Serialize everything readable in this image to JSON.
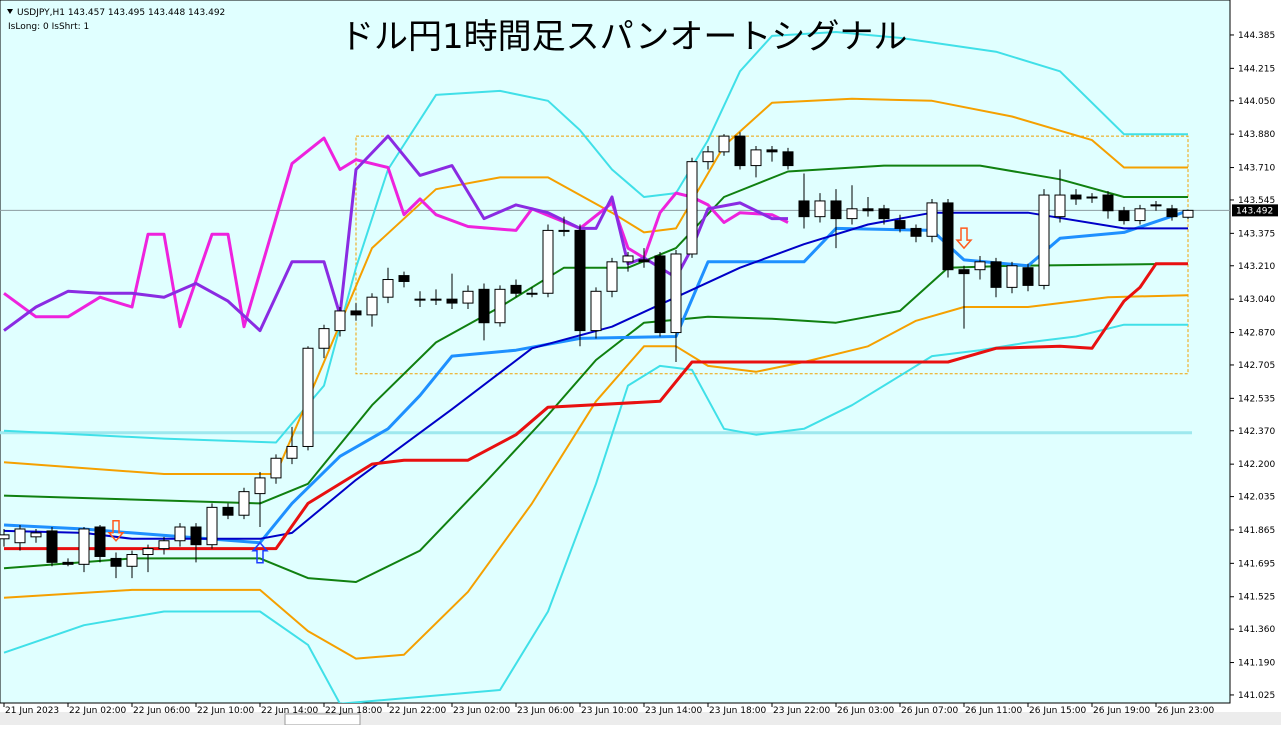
{
  "chart_data": {
    "type": "candlestick",
    "title": "ドル円1時間足スパンオートシグナル",
    "header": "USDJPY,H1  143.457 143.495 143.448 143.492",
    "status": "IsLong: 0 IsShrt: 1",
    "last_price": 143.492,
    "ylim": [
      140.984,
      144.563
    ],
    "xlim": [
      -0.25,
      76.625
    ],
    "yticks": [
      144.385,
      {
        "value": 144.215,
        "label": "144.215"
      },
      {
        "value": 144.05,
        "label": "144.050"
      },
      {
        "value": 143.88,
        "label": "143.880"
      },
      {
        "value": 143.71,
        "label": "143.710"
      },
      143.545,
      143.375,
      {
        "value": 143.21,
        "label": "143.210"
      },
      {
        "value": 143.04,
        "label": "143.040"
      },
      {
        "value": 142.87,
        "label": "142.870"
      },
      142.705,
      142.535,
      {
        "value": 142.37,
        "label": "142.370"
      },
      {
        "value": 142.2,
        "label": "142.200"
      },
      142.035,
      141.865,
      141.695,
      141.525,
      {
        "value": 141.36,
        "label": "141.360"
      },
      {
        "value": 141.19,
        "label": "141.190"
      },
      141.025
    ],
    "xticks": [
      {
        "value": 0,
        "label": "21 Jun 2023"
      },
      {
        "value": 4,
        "label": "22 Jun 02:00"
      },
      {
        "value": 8,
        "label": "22 Jun 06:00"
      },
      {
        "value": 12,
        "label": "22 Jun 10:00"
      },
      {
        "value": 16,
        "label": "22 Jun 14:00"
      },
      {
        "value": 20,
        "label": "22 Jun 18:00"
      },
      {
        "value": 24,
        "label": "22 Jun 22:00"
      },
      {
        "value": 28,
        "label": "23 Jun 02:00"
      },
      {
        "value": 32,
        "label": "23 Jun 06:00"
      },
      {
        "value": 36,
        "label": "23 Jun 10:00"
      },
      {
        "value": 40,
        "label": "23 Jun 14:00"
      },
      {
        "value": 44,
        "label": "23 Jun 18:00"
      },
      {
        "value": 48,
        "label": "23 Jun 22:00"
      },
      {
        "value": 52,
        "label": "26 Jun 03:00"
      },
      {
        "value": 56,
        "label": "26 Jun 07:00"
      },
      {
        "value": 60,
        "label": "26 Jun 11:00"
      },
      {
        "value": 64,
        "label": "26 Jun 15:00"
      },
      {
        "value": 68,
        "label": "26 Jun 19:00"
      },
      {
        "value": 72,
        "label": "26 Jun 23:00"
      }
    ],
    "candles": {
      "open": [
        141.82,
        141.8,
        141.83,
        141.86,
        141.7,
        141.69,
        141.88,
        141.72,
        141.68,
        141.74,
        141.77,
        141.81,
        141.88,
        141.79,
        141.98,
        141.94,
        142.05,
        142.13,
        142.23,
        142.29,
        142.79,
        142.88,
        142.98,
        142.96,
        143.05,
        143.16,
        143.04,
        143.04,
        143.04,
        143.02,
        143.09,
        142.92,
        143.11,
        143.07,
        143.07,
        143.39,
        143.39,
        142.88,
        143.08,
        143.23,
        143.24,
        143.26,
        142.87,
        143.27,
        143.74,
        143.79,
        143.87,
        143.72,
        143.8,
        143.79,
        143.54,
        143.46,
        143.54,
        143.45,
        143.5,
        143.5,
        143.44,
        143.4,
        143.36,
        143.53,
        143.19,
        143.19,
        143.23,
        143.1,
        143.2,
        143.11,
        143.46,
        143.57,
        143.56,
        143.57,
        143.49,
        143.44,
        143.52,
        143.5,
        143.457
      ],
      "high": [
        141.87,
        141.89,
        141.87,
        141.88,
        141.72,
        141.88,
        141.89,
        141.75,
        141.76,
        141.79,
        141.83,
        141.9,
        141.9,
        142.0,
        142.0,
        142.08,
        142.16,
        142.25,
        142.39,
        142.8,
        142.91,
        143.0,
        143.02,
        143.07,
        143.2,
        143.18,
        143.08,
        143.09,
        143.17,
        143.11,
        143.12,
        143.11,
        143.14,
        143.1,
        143.42,
        143.46,
        143.42,
        143.1,
        143.25,
        143.28,
        143.3,
        143.28,
        143.29,
        143.76,
        143.82,
        143.88,
        143.89,
        143.82,
        143.82,
        143.81,
        143.68,
        143.58,
        143.6,
        143.62,
        143.56,
        143.52,
        143.47,
        143.42,
        143.55,
        143.55,
        143.21,
        143.26,
        143.25,
        143.23,
        143.22,
        143.6,
        143.7,
        143.6,
        143.58,
        143.59,
        143.51,
        143.52,
        143.54,
        143.52,
        143.495
      ],
      "low": [
        141.78,
        141.76,
        141.8,
        141.68,
        141.68,
        141.65,
        141.7,
        141.62,
        141.62,
        141.65,
        141.74,
        141.78,
        141.7,
        141.77,
        141.92,
        141.92,
        141.88,
        142.1,
        142.2,
        142.27,
        142.74,
        142.85,
        142.93,
        142.9,
        143.02,
        143.1,
        143.0,
        143.01,
        142.99,
        142.99,
        142.83,
        142.9,
        143.05,
        143.05,
        143.05,
        143.36,
        142.8,
        142.84,
        143.05,
        143.18,
        143.2,
        142.85,
        142.72,
        143.25,
        143.7,
        143.77,
        143.7,
        143.66,
        143.74,
        143.7,
        143.4,
        143.43,
        143.3,
        143.42,
        143.46,
        143.42,
        143.38,
        143.33,
        143.33,
        143.15,
        142.89,
        143.14,
        143.05,
        143.07,
        143.08,
        143.09,
        143.43,
        143.52,
        143.53,
        143.45,
        143.42,
        143.42,
        143.49,
        143.44,
        143.448
      ],
      "close": [
        141.84,
        141.87,
        141.85,
        141.7,
        141.69,
        141.87,
        141.73,
        141.68,
        141.74,
        141.77,
        141.81,
        141.88,
        141.79,
        141.98,
        141.94,
        142.06,
        142.13,
        142.23,
        142.29,
        142.79,
        142.89,
        142.98,
        142.96,
        143.05,
        143.14,
        143.13,
        143.04,
        143.04,
        143.02,
        143.08,
        142.92,
        143.09,
        143.07,
        143.07,
        143.39,
        143.39,
        142.88,
        143.08,
        143.23,
        143.26,
        143.23,
        142.87,
        143.27,
        143.74,
        143.79,
        143.87,
        143.72,
        143.8,
        143.79,
        143.72,
        143.46,
        143.54,
        143.45,
        143.5,
        143.49,
        143.45,
        143.4,
        143.36,
        143.53,
        143.19,
        143.17,
        143.23,
        143.1,
        143.21,
        143.11,
        143.57,
        143.57,
        143.55,
        143.56,
        143.49,
        143.44,
        143.5,
        143.52,
        143.46,
        143.492
      ]
    },
    "lines": [
      {
        "color": "#40e0e8",
        "width": 2,
        "x": [
          0,
          10,
          17,
          20,
          22,
          24,
          27,
          31,
          34,
          36,
          38,
          40,
          42,
          44,
          46,
          48,
          52,
          56,
          62,
          66,
          70,
          74
        ],
        "values": [
          142.37,
          142.33,
          142.31,
          142.6,
          143.2,
          143.7,
          144.08,
          144.1,
          144.05,
          143.9,
          143.7,
          143.56,
          143.58,
          143.85,
          144.2,
          144.38,
          144.4,
          144.37,
          144.3,
          144.2,
          143.88,
          143.88
        ]
      },
      {
        "color": "#40e0e8",
        "width": 2,
        "x": [
          0,
          5,
          10,
          16,
          19,
          21,
          31,
          34,
          37,
          39,
          41,
          43,
          45,
          47,
          50,
          53,
          56,
          58,
          61,
          64,
          67,
          70,
          74
        ],
        "values": [
          141.24,
          141.38,
          141.45,
          141.45,
          141.28,
          140.98,
          141.05,
          141.45,
          142.1,
          142.6,
          142.7,
          142.68,
          142.38,
          142.35,
          142.38,
          142.5,
          142.65,
          142.75,
          142.78,
          142.82,
          142.85,
          142.91,
          142.91
        ]
      },
      {
        "color": "#f5a000",
        "width": 2,
        "x": [
          0,
          10,
          17,
          20,
          23,
          27,
          31,
          34,
          38,
          40,
          42,
          45,
          48,
          53,
          58,
          63,
          68,
          70,
          74
        ],
        "values": [
          142.21,
          142.15,
          142.15,
          142.72,
          143.3,
          143.6,
          143.66,
          143.66,
          143.48,
          143.38,
          143.4,
          143.82,
          144.04,
          144.06,
          144.05,
          143.97,
          143.85,
          143.71,
          143.71
        ]
      },
      {
        "color": "#f5a000",
        "width": 2,
        "x": [
          0,
          8,
          16,
          19,
          22,
          25,
          29,
          33,
          37,
          40,
          42,
          44,
          47,
          50,
          54,
          57,
          60,
          64,
          69,
          74
        ],
        "values": [
          141.52,
          141.56,
          141.56,
          141.35,
          141.21,
          141.23,
          141.55,
          142.0,
          142.52,
          142.8,
          142.8,
          142.7,
          142.67,
          142.72,
          142.8,
          142.93,
          143.0,
          143.0,
          143.05,
          143.06
        ]
      },
      {
        "color": "#108010",
        "width": 2,
        "x": [
          0,
          16,
          19,
          23,
          27,
          31,
          35,
          39,
          42,
          45,
          49,
          55,
          61,
          66,
          70,
          74
        ],
        "values": [
          142.04,
          142.0,
          142.1,
          142.5,
          142.82,
          143.0,
          143.2,
          143.2,
          143.3,
          143.56,
          143.69,
          143.72,
          143.72,
          143.65,
          143.56,
          143.56
        ]
      },
      {
        "color": "#108010",
        "width": 2,
        "x": [
          0,
          8,
          16,
          19,
          22,
          26,
          30,
          34,
          37,
          40,
          44,
          48,
          52,
          56,
          59,
          63,
          74
        ],
        "values": [
          141.67,
          141.72,
          141.72,
          141.62,
          141.6,
          141.76,
          142.1,
          142.45,
          142.73,
          142.92,
          142.95,
          142.94,
          142.92,
          142.98,
          143.2,
          143.21,
          143.22
        ]
      },
      {
        "color": "#1e90ff",
        "width": 3,
        "x": [
          0,
          5,
          8,
          16,
          18,
          21,
          24,
          26,
          28,
          32,
          36,
          42,
          44,
          50,
          52,
          58,
          60,
          64,
          66,
          70,
          74
        ],
        "values": [
          141.89,
          141.87,
          141.85,
          141.8,
          142.0,
          142.24,
          142.38,
          142.55,
          142.75,
          142.78,
          142.84,
          142.85,
          143.23,
          143.23,
          143.4,
          143.39,
          143.24,
          143.21,
          143.35,
          143.38,
          143.49
        ]
      },
      {
        "color": "#0000c8",
        "width": 2,
        "x": [
          0,
          5,
          8,
          16,
          18,
          22,
          28,
          33,
          38,
          42,
          46,
          50,
          54,
          58,
          64,
          70,
          74
        ],
        "values": [
          141.86,
          141.85,
          141.82,
          141.82,
          141.85,
          142.12,
          142.48,
          142.79,
          142.9,
          143.05,
          143.2,
          143.32,
          143.42,
          143.48,
          143.48,
          143.4,
          143.4
        ]
      },
      {
        "color": "#e81010",
        "width": 3,
        "x": [
          0,
          17,
          19,
          23,
          25,
          29,
          32,
          34,
          41,
          43,
          59,
          62,
          66,
          68,
          70,
          71,
          72,
          74
        ],
        "values": [
          141.77,
          141.77,
          142.0,
          142.2,
          142.22,
          142.22,
          142.35,
          142.49,
          142.52,
          142.72,
          142.72,
          142.79,
          142.8,
          142.79,
          143.03,
          143.1,
          143.22,
          143.22
        ]
      },
      {
        "color": "#ee22dd",
        "width": 3,
        "x": [
          0,
          2,
          4,
          6,
          8,
          9,
          10,
          11,
          13,
          14,
          15,
          18,
          20,
          21,
          22,
          24,
          25,
          26,
          27,
          29,
          32,
          33,
          36,
          38,
          39,
          40,
          41,
          42,
          43,
          44,
          45,
          46,
          48,
          49
        ],
        "values": [
          143.07,
          142.95,
          142.95,
          143.05,
          143.0,
          143.37,
          143.37,
          142.9,
          143.37,
          143.37,
          142.9,
          143.73,
          143.86,
          143.7,
          143.75,
          143.71,
          143.47,
          143.55,
          143.47,
          143.41,
          143.39,
          143.5,
          143.4,
          143.53,
          143.3,
          143.25,
          143.48,
          143.58,
          143.56,
          143.52,
          143.43,
          143.48,
          143.47,
          143.43
        ]
      },
      {
        "color": "#8a2be2",
        "width": 3,
        "x": [
          0,
          2,
          4,
          6,
          8,
          10,
          12,
          14,
          16,
          18,
          20,
          21,
          22,
          24,
          26,
          28,
          30,
          32,
          34,
          36,
          37,
          38,
          39,
          40,
          42,
          43,
          44,
          46,
          48,
          49
        ],
        "values": [
          142.88,
          143.0,
          143.08,
          143.07,
          143.07,
          143.05,
          143.12,
          143.03,
          142.88,
          143.23,
          143.23,
          142.96,
          143.7,
          143.87,
          143.67,
          143.72,
          143.45,
          143.52,
          143.48,
          143.4,
          143.4,
          143.56,
          143.22,
          143.25,
          143.15,
          143.3,
          143.5,
          143.53,
          143.45,
          143.45
        ]
      }
    ],
    "hline": {
      "value": 142.36,
      "color": "#9ee8ee"
    },
    "range_box": {
      "x": [
        22,
        74
      ],
      "values": [
        143.87,
        142.66
      ],
      "color": "#f0a000"
    },
    "signals": [
      {
        "x": 7,
        "value": 141.81,
        "dir": "down",
        "color": "#ff5a1e"
      },
      {
        "x": 16,
        "value": 141.8,
        "dir": "up",
        "color": "#1e3cff"
      },
      {
        "x": 60,
        "value": 143.3,
        "dir": "down",
        "color": "#ff5a1e"
      }
    ]
  }
}
